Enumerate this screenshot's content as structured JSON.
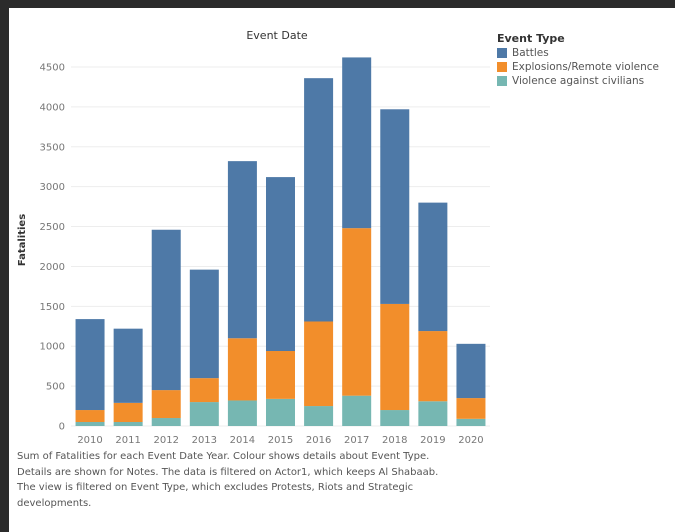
{
  "chart_data": {
    "type": "bar",
    "stacked": true,
    "title": "Event Date",
    "xlabel": "",
    "ylabel": "Fatalities",
    "categories": [
      "2010",
      "2011",
      "2012",
      "2013",
      "2014",
      "2015",
      "2016",
      "2017",
      "2018",
      "2019",
      "2020"
    ],
    "ylim": [
      0,
      4500
    ],
    "yticks": [
      0,
      500,
      1000,
      1500,
      2000,
      2500,
      3000,
      3500,
      4000,
      4500
    ],
    "legend_title": "Event Type",
    "legend_position": "top-right",
    "grid": true,
    "series": [
      {
        "name": "Violence against civilians",
        "color": "#76b7b2",
        "values": [
          50,
          50,
          100,
          300,
          320,
          340,
          250,
          380,
          200,
          310,
          90
        ]
      },
      {
        "name": "Explosions/Remote violence",
        "color": "#f28e2b",
        "values": [
          150,
          240,
          350,
          300,
          780,
          600,
          1060,
          2100,
          1330,
          880,
          260
        ]
      },
      {
        "name": "Battles",
        "color": "#4e79a7",
        "values": [
          1140,
          930,
          2010,
          1360,
          2220,
          2180,
          3050,
          2140,
          2440,
          1610,
          680
        ]
      }
    ]
  },
  "legend_order": [
    2,
    1,
    0
  ],
  "caption": [
    "Sum of Fatalities for each Event Date Year.  Colour shows details about Event Type.",
    "Details are shown for Notes. The data is filtered on Actor1, which keeps Al Shabaab.",
    "The view is filtered on Event Type, which excludes Protests, Riots and Strategic",
    "developments."
  ]
}
